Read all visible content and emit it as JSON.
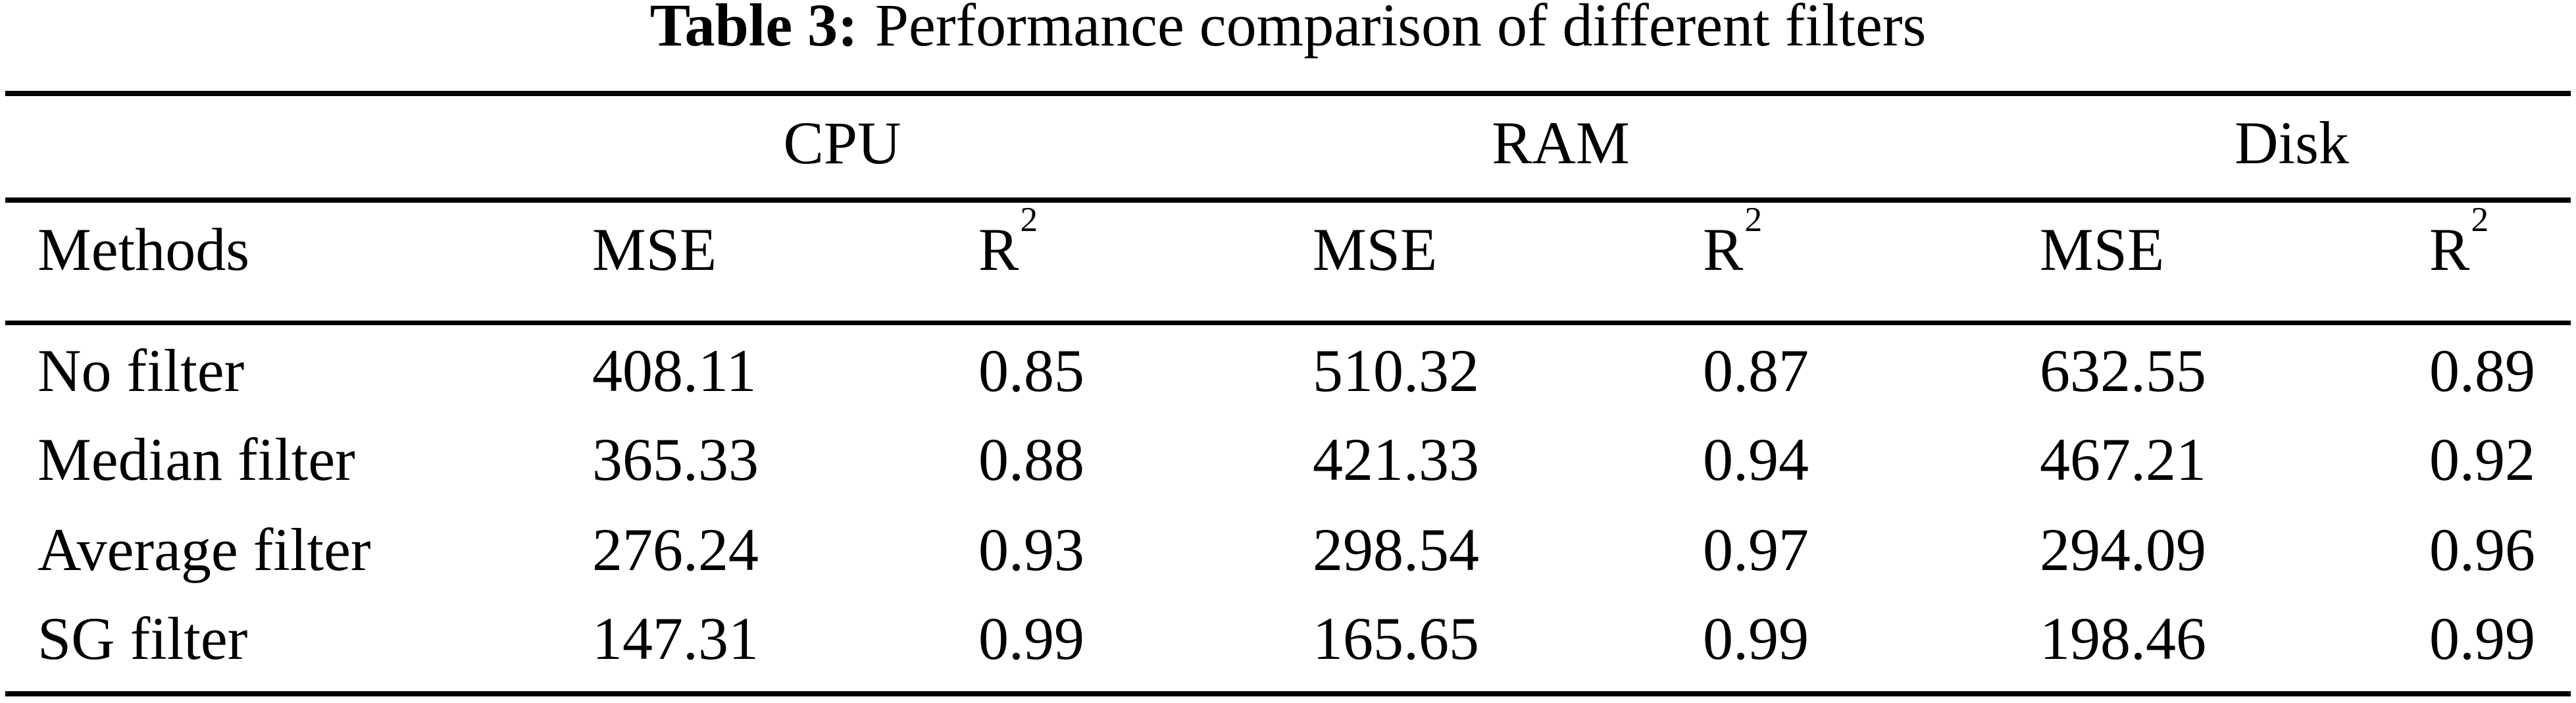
{
  "page": {
    "background_color": "#ffffff",
    "text_color": "#000000"
  },
  "caption": {
    "label": "Table 3:",
    "text": "Performance comparison of different filters"
  },
  "table": {
    "groups": [
      {
        "label": "CPU"
      },
      {
        "label": "RAM"
      },
      {
        "label": "Disk"
      }
    ],
    "methods_header": "Methods",
    "mse_header": "MSE",
    "r2_header": {
      "base": "R",
      "sup": "2"
    },
    "rows": [
      {
        "method": "No filter",
        "values": [
          "408.11",
          "0.85",
          "510.32",
          "0.87",
          "632.55",
          "0.89"
        ]
      },
      {
        "method": "Median filter",
        "values": [
          "365.33",
          "0.88",
          "421.33",
          "0.94",
          "467.21",
          "0.92"
        ]
      },
      {
        "method": "Average filter",
        "values": [
          "276.24",
          "0.93",
          "298.54",
          "0.97",
          "294.09",
          "0.96"
        ]
      },
      {
        "method": "SG filter",
        "values": [
          "147.31",
          "0.99",
          "165.65",
          "0.99",
          "198.46",
          "0.99"
        ]
      }
    ]
  }
}
